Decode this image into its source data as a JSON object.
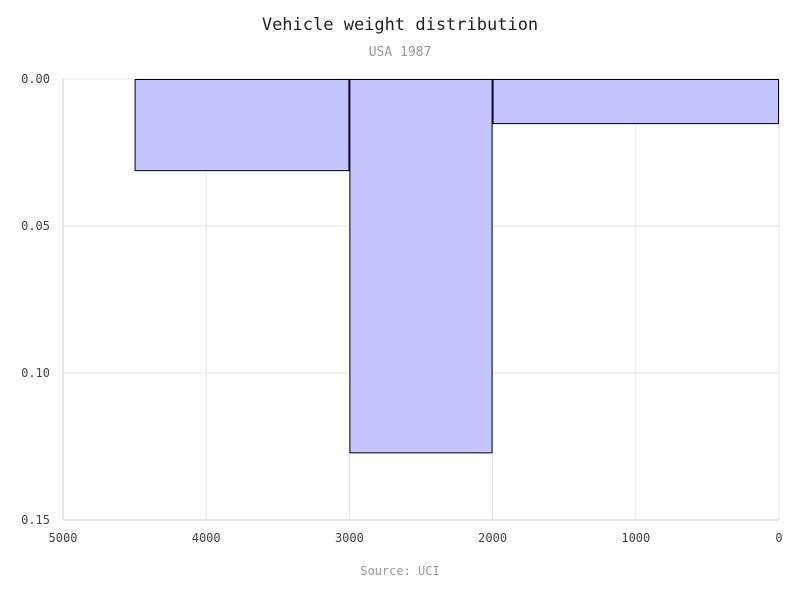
{
  "chart_data": {
    "type": "bar",
    "title": "Vehicle weight distribution",
    "subtitle": "USA 1987",
    "source": "Source: UCI",
    "xlabel": "",
    "ylabel": "",
    "x_reversed": true,
    "y_reversed": true,
    "xlim": [
      0,
      5000
    ],
    "ylim": [
      0,
      0.15
    ],
    "x_ticks": [
      5000,
      4000,
      3000,
      2000,
      1000,
      0
    ],
    "x_tick_labels": [
      "5000",
      "4000",
      "3000",
      "2000",
      "1000",
      "0"
    ],
    "y_ticks": [
      0,
      0.05,
      0.1,
      0.15
    ],
    "y_tick_labels": [
      "0.00",
      "0.05",
      "0.10",
      "0.15"
    ],
    "grid": true,
    "bins": [
      {
        "x0": 3000,
        "x1": 4500,
        "value": 0.031
      },
      {
        "x0": 2000,
        "x1": 3000,
        "value": 0.127
      },
      {
        "x0": 0,
        "x1": 2000,
        "value": 0.015
      }
    ],
    "colors": {
      "bar_fill": "#c4c4ff",
      "bar_stroke": "#000000",
      "grid": "#e2e6ee",
      "axis": "#cccccc"
    }
  }
}
